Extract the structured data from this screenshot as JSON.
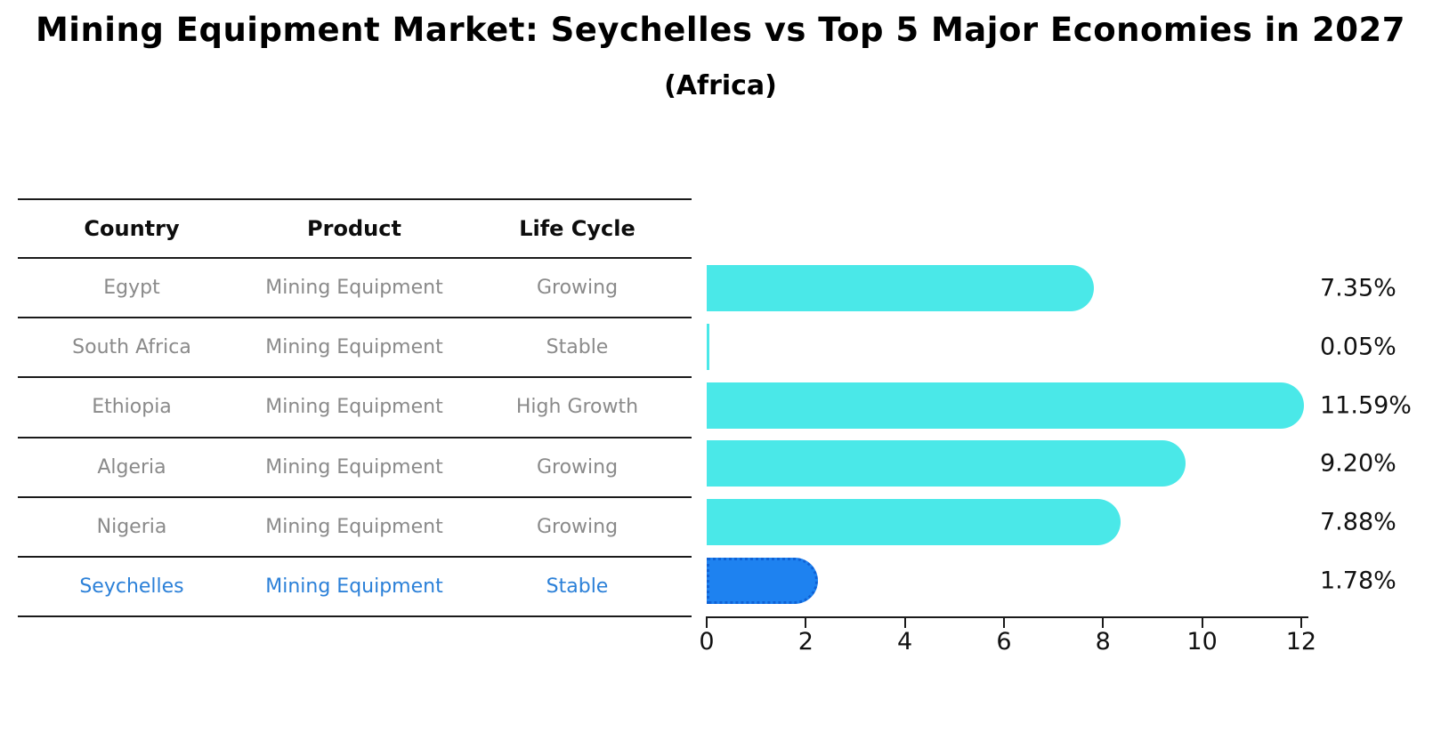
{
  "title": "Mining Equipment Market: Seychelles vs Top 5 Major Economies in 2027",
  "subtitle": "(Africa)",
  "table": {
    "headers": [
      "Country",
      "Product",
      "Life Cycle"
    ],
    "rows": [
      {
        "country": "Egypt",
        "product": "Mining Equipment",
        "life_cycle": "Growing",
        "highlight": false
      },
      {
        "country": "South Africa",
        "product": "Mining Equipment",
        "life_cycle": "Stable",
        "highlight": false
      },
      {
        "country": "Ethiopia",
        "product": "Mining Equipment",
        "life_cycle": "High Growth",
        "highlight": false
      },
      {
        "country": "Algeria",
        "product": "Mining Equipment",
        "life_cycle": "Growing",
        "highlight": false
      },
      {
        "country": "Nigeria",
        "product": "Mining Equipment",
        "life_cycle": "Growing",
        "highlight": false
      },
      {
        "country": "Seychelles",
        "product": "Mining Equipment",
        "life_cycle": "Stable",
        "highlight": true
      }
    ]
  },
  "chart_data": {
    "type": "bar",
    "orientation": "horizontal",
    "title": "Mining Equipment Market: Seychelles vs Top 5 Major Economies in 2027",
    "subtitle": "(Africa)",
    "categories": [
      "Egypt",
      "South Africa",
      "Ethiopia",
      "Algeria",
      "Nigeria",
      "Seychelles"
    ],
    "values": [
      7.35,
      0.05,
      11.59,
      9.2,
      7.88,
      1.78
    ],
    "value_labels": [
      "7.35%",
      "0.05%",
      "11.59%",
      "9.20%",
      "7.88%",
      "1.78%"
    ],
    "highlighted_category": "Seychelles",
    "x_ticks": [
      0,
      2,
      4,
      6,
      8,
      10,
      12
    ],
    "xlim": [
      0,
      12
    ],
    "grid": false,
    "legend": "none",
    "colors": {
      "bar_default": "#4ae8e8",
      "bar_highlight": "#1e82f0",
      "bar_highlight_border": "#0f62d6",
      "highlight_text": "#2b80d8",
      "table_text": "#8a8a8a",
      "axis": "#1a1a1a"
    }
  }
}
